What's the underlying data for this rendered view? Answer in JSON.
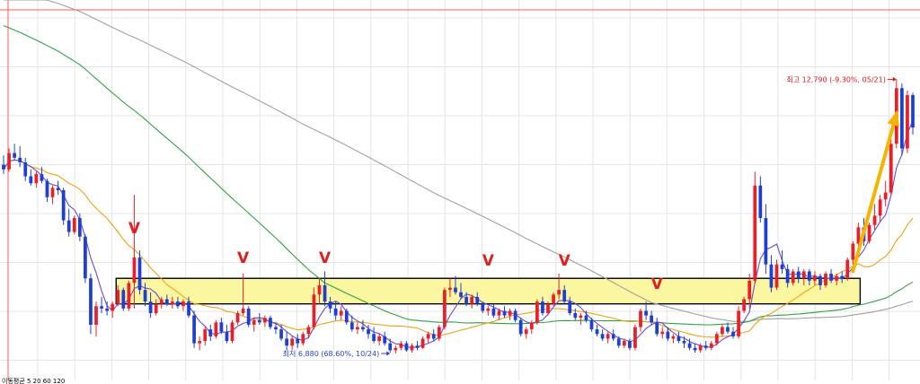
{
  "chart_data": {
    "type": "candlestick",
    "title": "",
    "xlabel": "",
    "ylabel": "",
    "ylim": [
      6300,
      14500
    ],
    "grid": true,
    "colors": {
      "up": "#e8202a",
      "down": "#1f3fd0",
      "ma5": "#6a4ad8",
      "ma20": "#f0a012",
      "ma60": "#2fa043",
      "ma120": "#a0a0a0",
      "support_zone": "#fbf7a0",
      "arrow": "#f5b400",
      "v_mark": "#e02020",
      "annotation": "#d81818",
      "annotation_low": "#2a3fd6"
    },
    "ma_periods": [
      5,
      20,
      60,
      120
    ],
    "support_zone": {
      "low": 7950,
      "high": 8500
    },
    "high_annotation": {
      "text": "최고 12,790 (-9.30%, 05/21)",
      "value": 12790
    },
    "low_annotation": {
      "text": "최저 6,880 (68.60%, 10/24)",
      "value": 6880
    },
    "v_marks": [
      "V",
      "V",
      "V",
      "V",
      "V",
      "V"
    ],
    "legend_text": "이동평균 5 20 60 120",
    "candles": [
      {
        "o": 10950,
        "h": 11150,
        "l": 10750,
        "c": 10850
      },
      {
        "o": 10850,
        "h": 11300,
        "l": 10800,
        "c": 11200
      },
      {
        "o": 11200,
        "h": 11400,
        "l": 11050,
        "c": 11100
      },
      {
        "o": 11100,
        "h": 11350,
        "l": 10900,
        "c": 11000
      },
      {
        "o": 11000,
        "h": 11100,
        "l": 10600,
        "c": 10700
      },
      {
        "o": 10700,
        "h": 10850,
        "l": 10500,
        "c": 10550
      },
      {
        "o": 10550,
        "h": 10800,
        "l": 10450,
        "c": 10750
      },
      {
        "o": 10750,
        "h": 10900,
        "l": 10550,
        "c": 10600
      },
      {
        "o": 10600,
        "h": 10650,
        "l": 10150,
        "c": 10250
      },
      {
        "o": 10250,
        "h": 10500,
        "l": 10100,
        "c": 10450
      },
      {
        "o": 10450,
        "h": 10600,
        "l": 10300,
        "c": 10400
      },
      {
        "o": 10400,
        "h": 10450,
        "l": 9650,
        "c": 9750
      },
      {
        "o": 9750,
        "h": 10000,
        "l": 9400,
        "c": 9500
      },
      {
        "o": 9500,
        "h": 9850,
        "l": 9450,
        "c": 9800
      },
      {
        "o": 9800,
        "h": 9900,
        "l": 9300,
        "c": 9400
      },
      {
        "o": 9400,
        "h": 9450,
        "l": 8400,
        "c": 8500
      },
      {
        "o": 8500,
        "h": 8600,
        "l": 7300,
        "c": 7500
      },
      {
        "o": 7500,
        "h": 8000,
        "l": 7250,
        "c": 7900
      },
      {
        "o": 7900,
        "h": 8100,
        "l": 7750,
        "c": 7850
      },
      {
        "o": 7850,
        "h": 8000,
        "l": 7700,
        "c": 7800
      },
      {
        "o": 7800,
        "h": 8000,
        "l": 7650,
        "c": 7950
      },
      {
        "o": 7950,
        "h": 8350,
        "l": 7900,
        "c": 8250
      },
      {
        "o": 8250,
        "h": 8300,
        "l": 7800,
        "c": 7850
      },
      {
        "o": 7850,
        "h": 8450,
        "l": 7800,
        "c": 8400
      },
      {
        "o": 8400,
        "h": 10300,
        "l": 7850,
        "c": 8950
      },
      {
        "o": 8950,
        "h": 9100,
        "l": 8150,
        "c": 8250
      },
      {
        "o": 8250,
        "h": 8400,
        "l": 7900,
        "c": 8000
      },
      {
        "o": 8000,
        "h": 8200,
        "l": 7650,
        "c": 7750
      },
      {
        "o": 7750,
        "h": 8050,
        "l": 7700,
        "c": 7950
      },
      {
        "o": 7950,
        "h": 8100,
        "l": 7850,
        "c": 8050
      },
      {
        "o": 8050,
        "h": 8150,
        "l": 7900,
        "c": 7950
      },
      {
        "o": 7950,
        "h": 8100,
        "l": 7850,
        "c": 8000
      },
      {
        "o": 8000,
        "h": 8100,
        "l": 7850,
        "c": 7900
      },
      {
        "o": 7900,
        "h": 8050,
        "l": 7800,
        "c": 8000
      },
      {
        "o": 8000,
        "h": 8100,
        "l": 7650,
        "c": 7700
      },
      {
        "o": 7700,
        "h": 7800,
        "l": 7000,
        "c": 7100
      },
      {
        "o": 7100,
        "h": 7250,
        "l": 6950,
        "c": 7150
      },
      {
        "o": 7150,
        "h": 7450,
        "l": 7050,
        "c": 7400
      },
      {
        "o": 7400,
        "h": 7500,
        "l": 7150,
        "c": 7250
      },
      {
        "o": 7250,
        "h": 7600,
        "l": 7200,
        "c": 7550
      },
      {
        "o": 7550,
        "h": 7650,
        "l": 7300,
        "c": 7350
      },
      {
        "o": 7350,
        "h": 7500,
        "l": 7100,
        "c": 7150
      },
      {
        "o": 7150,
        "h": 7600,
        "l": 7100,
        "c": 7550
      },
      {
        "o": 7550,
        "h": 7800,
        "l": 7500,
        "c": 7750
      },
      {
        "o": 7750,
        "h": 8600,
        "l": 7700,
        "c": 7850
      },
      {
        "o": 7850,
        "h": 7900,
        "l": 7450,
        "c": 7500
      },
      {
        "o": 7500,
        "h": 7650,
        "l": 7350,
        "c": 7600
      },
      {
        "o": 7600,
        "h": 7750,
        "l": 7500,
        "c": 7550
      },
      {
        "o": 7550,
        "h": 7700,
        "l": 7450,
        "c": 7650
      },
      {
        "o": 7650,
        "h": 7700,
        "l": 7400,
        "c": 7450
      },
      {
        "o": 7450,
        "h": 7550,
        "l": 7300,
        "c": 7400
      },
      {
        "o": 7400,
        "h": 7500,
        "l": 7150,
        "c": 7200
      },
      {
        "o": 7200,
        "h": 7350,
        "l": 6950,
        "c": 7050
      },
      {
        "o": 7050,
        "h": 7250,
        "l": 6950,
        "c": 7200
      },
      {
        "o": 7200,
        "h": 7300,
        "l": 7000,
        "c": 7100
      },
      {
        "o": 7100,
        "h": 7350,
        "l": 7050,
        "c": 7300
      },
      {
        "o": 7300,
        "h": 7500,
        "l": 7200,
        "c": 7450
      },
      {
        "o": 7450,
        "h": 8300,
        "l": 7400,
        "c": 8150
      },
      {
        "o": 8150,
        "h": 8500,
        "l": 7950,
        "c": 8350
      },
      {
        "o": 8350,
        "h": 8650,
        "l": 7900,
        "c": 8000
      },
      {
        "o": 8000,
        "h": 8100,
        "l": 7750,
        "c": 7850
      },
      {
        "o": 7850,
        "h": 8000,
        "l": 7600,
        "c": 7700
      },
      {
        "o": 7700,
        "h": 7900,
        "l": 7600,
        "c": 7800
      },
      {
        "o": 7800,
        "h": 7850,
        "l": 7500,
        "c": 7550
      },
      {
        "o": 7550,
        "h": 7700,
        "l": 7350,
        "c": 7400
      },
      {
        "o": 7400,
        "h": 7550,
        "l": 7300,
        "c": 7450
      },
      {
        "o": 7450,
        "h": 7600,
        "l": 7350,
        "c": 7400
      },
      {
        "o": 7400,
        "h": 7500,
        "l": 7200,
        "c": 7300
      },
      {
        "o": 7300,
        "h": 7450,
        "l": 7100,
        "c": 7150
      },
      {
        "o": 7150,
        "h": 7300,
        "l": 7050,
        "c": 7250
      },
      {
        "o": 7250,
        "h": 7350,
        "l": 7050,
        "c": 7100
      },
      {
        "o": 7100,
        "h": 7200,
        "l": 6900,
        "c": 6950
      },
      {
        "o": 6950,
        "h": 7050,
        "l": 6880,
        "c": 7000
      },
      {
        "o": 7000,
        "h": 7150,
        "l": 6950,
        "c": 7100
      },
      {
        "o": 7100,
        "h": 7150,
        "l": 6920,
        "c": 6950
      },
      {
        "o": 6950,
        "h": 7100,
        "l": 6900,
        "c": 7050
      },
      {
        "o": 7050,
        "h": 7150,
        "l": 6950,
        "c": 7000
      },
      {
        "o": 7000,
        "h": 7250,
        "l": 6980,
        "c": 7200
      },
      {
        "o": 7200,
        "h": 7350,
        "l": 7100,
        "c": 7300
      },
      {
        "o": 7300,
        "h": 7400,
        "l": 7150,
        "c": 7200
      },
      {
        "o": 7200,
        "h": 7500,
        "l": 7150,
        "c": 7450
      },
      {
        "o": 7450,
        "h": 8300,
        "l": 7400,
        "c": 8250
      },
      {
        "o": 8250,
        "h": 8500,
        "l": 8100,
        "c": 8300
      },
      {
        "o": 8300,
        "h": 8550,
        "l": 8150,
        "c": 8200
      },
      {
        "o": 8200,
        "h": 8400,
        "l": 8050,
        "c": 8100
      },
      {
        "o": 8100,
        "h": 8200,
        "l": 7900,
        "c": 7950
      },
      {
        "o": 7950,
        "h": 8150,
        "l": 7850,
        "c": 8100
      },
      {
        "o": 8100,
        "h": 8200,
        "l": 7900,
        "c": 7950
      },
      {
        "o": 7950,
        "h": 8000,
        "l": 7750,
        "c": 7800
      },
      {
        "o": 7800,
        "h": 7900,
        "l": 7700,
        "c": 7850
      },
      {
        "o": 7850,
        "h": 7950,
        "l": 7650,
        "c": 7700
      },
      {
        "o": 7700,
        "h": 7850,
        "l": 7600,
        "c": 7800
      },
      {
        "o": 7800,
        "h": 7900,
        "l": 7650,
        "c": 7700
      },
      {
        "o": 7700,
        "h": 7850,
        "l": 7600,
        "c": 7800
      },
      {
        "o": 7800,
        "h": 7850,
        "l": 7550,
        "c": 7600
      },
      {
        "o": 7600,
        "h": 7650,
        "l": 7250,
        "c": 7300
      },
      {
        "o": 7300,
        "h": 7450,
        "l": 7200,
        "c": 7400
      },
      {
        "o": 7400,
        "h": 7600,
        "l": 7300,
        "c": 7550
      },
      {
        "o": 7550,
        "h": 8050,
        "l": 7500,
        "c": 8000
      },
      {
        "o": 8000,
        "h": 8100,
        "l": 7700,
        "c": 7750
      },
      {
        "o": 7750,
        "h": 8000,
        "l": 7700,
        "c": 7950
      },
      {
        "o": 7950,
        "h": 8200,
        "l": 7900,
        "c": 8150
      },
      {
        "o": 8150,
        "h": 8600,
        "l": 8050,
        "c": 8250
      },
      {
        "o": 8250,
        "h": 8350,
        "l": 7950,
        "c": 8000
      },
      {
        "o": 8000,
        "h": 8100,
        "l": 7700,
        "c": 7750
      },
      {
        "o": 7750,
        "h": 7850,
        "l": 7600,
        "c": 7650
      },
      {
        "o": 7650,
        "h": 7750,
        "l": 7500,
        "c": 7700
      },
      {
        "o": 7700,
        "h": 7800,
        "l": 7550,
        "c": 7600
      },
      {
        "o": 7600,
        "h": 7650,
        "l": 7350,
        "c": 7400
      },
      {
        "o": 7400,
        "h": 7500,
        "l": 7250,
        "c": 7300
      },
      {
        "o": 7300,
        "h": 7400,
        "l": 7150,
        "c": 7200
      },
      {
        "o": 7200,
        "h": 7350,
        "l": 7100,
        "c": 7300
      },
      {
        "o": 7300,
        "h": 7400,
        "l": 7150,
        "c": 7200
      },
      {
        "o": 7200,
        "h": 7250,
        "l": 7000,
        "c": 7050
      },
      {
        "o": 7050,
        "h": 7200,
        "l": 7000,
        "c": 7150
      },
      {
        "o": 7150,
        "h": 7200,
        "l": 6950,
        "c": 7000
      },
      {
        "o": 7000,
        "h": 7500,
        "l": 6950,
        "c": 7450
      },
      {
        "o": 7450,
        "h": 7850,
        "l": 7350,
        "c": 7800
      },
      {
        "o": 7800,
        "h": 8000,
        "l": 7600,
        "c": 7700
      },
      {
        "o": 7700,
        "h": 7800,
        "l": 7500,
        "c": 7550
      },
      {
        "o": 7550,
        "h": 7650,
        "l": 7250,
        "c": 7300
      },
      {
        "o": 7300,
        "h": 7450,
        "l": 7200,
        "c": 7350
      },
      {
        "o": 7350,
        "h": 7450,
        "l": 7150,
        "c": 7200
      },
      {
        "o": 7200,
        "h": 7300,
        "l": 7100,
        "c": 7250
      },
      {
        "o": 7250,
        "h": 7350,
        "l": 7100,
        "c": 7150
      },
      {
        "o": 7150,
        "h": 7250,
        "l": 7000,
        "c": 7100
      },
      {
        "o": 7100,
        "h": 7200,
        "l": 6950,
        "c": 7000
      },
      {
        "o": 7000,
        "h": 7100,
        "l": 6900,
        "c": 6950
      },
      {
        "o": 6950,
        "h": 7100,
        "l": 6900,
        "c": 7050
      },
      {
        "o": 7050,
        "h": 7150,
        "l": 6950,
        "c": 7000
      },
      {
        "o": 7000,
        "h": 7150,
        "l": 6950,
        "c": 7100
      },
      {
        "o": 7100,
        "h": 7350,
        "l": 7050,
        "c": 7300
      },
      {
        "o": 7300,
        "h": 7500,
        "l": 7250,
        "c": 7450
      },
      {
        "o": 7450,
        "h": 7550,
        "l": 7300,
        "c": 7350
      },
      {
        "o": 7350,
        "h": 7450,
        "l": 7200,
        "c": 7250
      },
      {
        "o": 7250,
        "h": 7900,
        "l": 7200,
        "c": 7800
      },
      {
        "o": 7800,
        "h": 8100,
        "l": 7750,
        "c": 8050
      },
      {
        "o": 8050,
        "h": 8600,
        "l": 7850,
        "c": 8450
      },
      {
        "o": 8450,
        "h": 10800,
        "l": 8400,
        "c": 10500
      },
      {
        "o": 10500,
        "h": 10700,
        "l": 9700,
        "c": 9800
      },
      {
        "o": 9800,
        "h": 10100,
        "l": 8600,
        "c": 8800
      },
      {
        "o": 8800,
        "h": 9000,
        "l": 8200,
        "c": 8300
      },
      {
        "o": 8300,
        "h": 8900,
        "l": 8250,
        "c": 8800
      },
      {
        "o": 8800,
        "h": 9100,
        "l": 8600,
        "c": 8700
      },
      {
        "o": 8700,
        "h": 8800,
        "l": 8300,
        "c": 8400
      },
      {
        "o": 8400,
        "h": 8700,
        "l": 8350,
        "c": 8650
      },
      {
        "o": 8650,
        "h": 8750,
        "l": 8400,
        "c": 8500
      },
      {
        "o": 8500,
        "h": 8700,
        "l": 8350,
        "c": 8650
      },
      {
        "o": 8650,
        "h": 8700,
        "l": 8350,
        "c": 8450
      },
      {
        "o": 8450,
        "h": 8650,
        "l": 8350,
        "c": 8550
      },
      {
        "o": 8550,
        "h": 8600,
        "l": 8250,
        "c": 8350
      },
      {
        "o": 8350,
        "h": 8650,
        "l": 8300,
        "c": 8600
      },
      {
        "o": 8600,
        "h": 8700,
        "l": 8400,
        "c": 8450
      },
      {
        "o": 8450,
        "h": 8600,
        "l": 8350,
        "c": 8550
      },
      {
        "o": 8550,
        "h": 8650,
        "l": 8400,
        "c": 8500
      },
      {
        "o": 8500,
        "h": 8950,
        "l": 8450,
        "c": 8900
      },
      {
        "o": 8900,
        "h": 9300,
        "l": 8800,
        "c": 9250
      },
      {
        "o": 9250,
        "h": 9700,
        "l": 9150,
        "c": 9600
      },
      {
        "o": 9600,
        "h": 9800,
        "l": 9200,
        "c": 9300
      },
      {
        "o": 9300,
        "h": 9700,
        "l": 9250,
        "c": 9650
      },
      {
        "o": 9650,
        "h": 10100,
        "l": 9550,
        "c": 9850
      },
      {
        "o": 9850,
        "h": 10300,
        "l": 9700,
        "c": 10200
      },
      {
        "o": 10200,
        "h": 10600,
        "l": 10050,
        "c": 10350
      },
      {
        "o": 10350,
        "h": 11500,
        "l": 10300,
        "c": 11400
      },
      {
        "o": 11400,
        "h": 12790,
        "l": 11300,
        "c": 12600
      },
      {
        "o": 12600,
        "h": 12700,
        "l": 11150,
        "c": 11300
      },
      {
        "o": 11300,
        "h": 12550,
        "l": 11200,
        "c": 12450
      },
      {
        "o": 12450,
        "h": 12500,
        "l": 11600,
        "c": 11750
      }
    ]
  }
}
